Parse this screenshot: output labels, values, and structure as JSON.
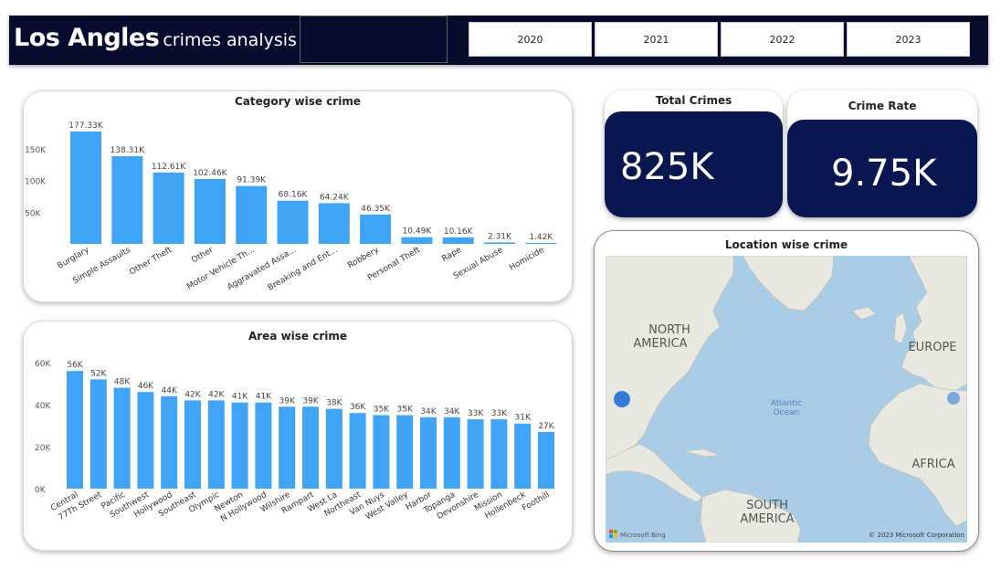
{
  "header": {
    "title_main": "Los Angles",
    "title_sub": "crimes analysis",
    "years": [
      "2020",
      "2021",
      "2022",
      "2023"
    ]
  },
  "kpis": {
    "total_crimes": {
      "title": "Total Crimes",
      "value": "825K"
    },
    "crime_rate": {
      "title": "Crime Rate",
      "value": "9.75K"
    }
  },
  "category_chart": {
    "title": "Category wise crime",
    "bar_color": "#3fa3f6",
    "y_ticks": [
      "150K",
      "100K",
      "50K"
    ],
    "y_tick_values": [
      150,
      100,
      50
    ],
    "ymax": 177.33,
    "categories": [
      "Burglary",
      "Simple Assaults",
      "Other Theft",
      "Other",
      "Motor Vehicle Th...",
      "Aggravated Assa...",
      "Breaking and Ent...",
      "Robbery",
      "Personal Theft",
      "Rape",
      "Sexual Abuse",
      "Homicide"
    ],
    "values": [
      177.33,
      138.31,
      112.61,
      102.46,
      91.39,
      68.16,
      64.24,
      46.35,
      10.49,
      10.16,
      2.31,
      1.42
    ],
    "labels": [
      "177.33K",
      "138.31K",
      "112.61K",
      "102.46K",
      "91.39K",
      "68.16K",
      "64.24K",
      "46.35K",
      "10.49K",
      "10.16K",
      "2.31K",
      "1.42K"
    ]
  },
  "area_chart": {
    "title": "Area wise crime",
    "bar_color": "#3fa3f6",
    "y_ticks": [
      "60K",
      "40K",
      "20K",
      "0K"
    ],
    "y_tick_values": [
      60,
      40,
      20,
      0
    ],
    "ymax": 60,
    "categories": [
      "Central",
      "77Th Street",
      "Pacific",
      "Southwest",
      "Hollywood",
      "Southeast",
      "Olympic",
      "Newton",
      "N Hollywood",
      "Wilshire",
      "Rampart",
      "West La",
      "Northeast",
      "Van Nuys",
      "West Valley",
      "Harbor",
      "Topanga",
      "Devonshire",
      "Mission",
      "Hollenbeck",
      "Foothill"
    ],
    "values": [
      56,
      52,
      48,
      46,
      44,
      42,
      42,
      41,
      41,
      39,
      39,
      38,
      36,
      35,
      35,
      34,
      34,
      33,
      33,
      31,
      27
    ],
    "labels": [
      "56K",
      "52K",
      "48K",
      "46K",
      "44K",
      "42K",
      "42K",
      "41K",
      "41K",
      "39K",
      "39K",
      "38K",
      "36K",
      "35K",
      "35K",
      "34K",
      "34K",
      "33K",
      "33K",
      "31K",
      "27K"
    ]
  },
  "map": {
    "title": "Location wise crime",
    "labels": {
      "north_america": "NORTH AMERICA",
      "europe": "EUROPE",
      "atlantic": "Atlantic Ocean",
      "africa": "AFRICA",
      "south_america": "SOUTH AMERICA"
    },
    "attribution_left": "Microsoft Bing",
    "attribution_right": "© 2023 Microsoft Corporation",
    "ocean_color": "#a9cde6",
    "land_color": "#e9e8e1",
    "point_color": "#1f6fd6"
  }
}
